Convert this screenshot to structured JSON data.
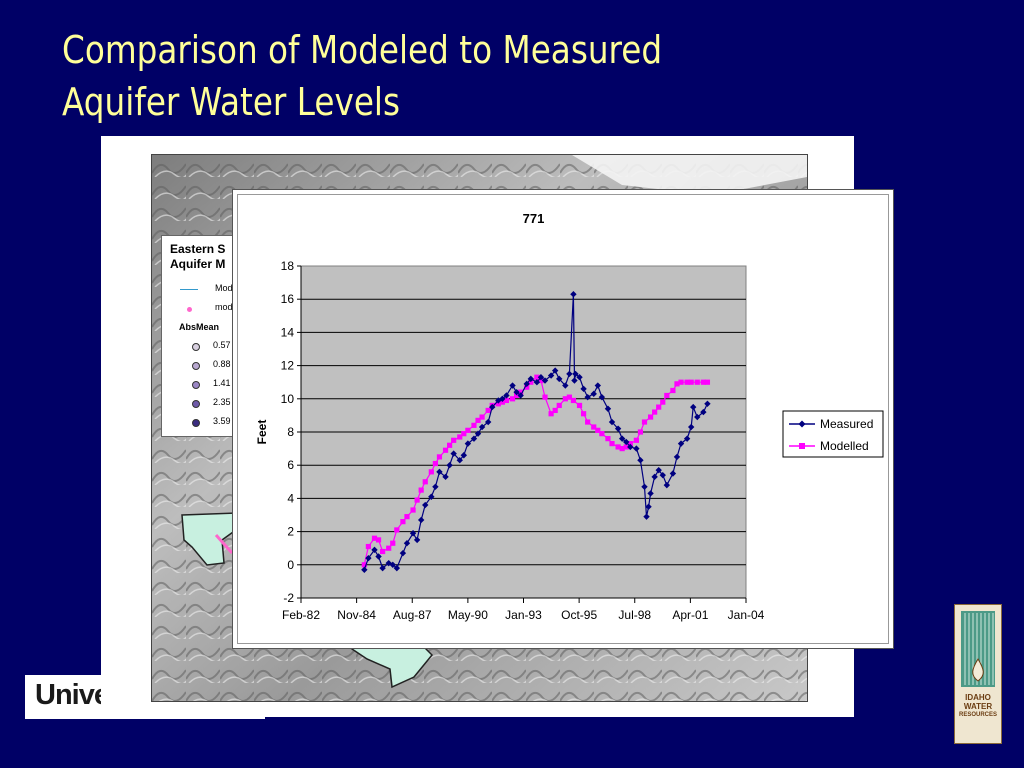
{
  "slide": {
    "title_line1": "Comparison of Modeled to Measured",
    "title_line2": "Aquifer Water Levels",
    "footer_logo_text": "Unive",
    "iwri_logo_text": [
      "IDAHO",
      "WATER",
      "RESOURCES"
    ]
  },
  "map_legend": {
    "title_line1": "Eastern S",
    "title_line2": "Aquifer M",
    "row_line": "Mod",
    "row_dot": "mod",
    "abs_mean_header": "AbsMean",
    "classes": [
      "0.57",
      "0.88",
      "1.41",
      "2.35",
      "3.59"
    ]
  },
  "colors": {
    "background": "#000066",
    "title": "#ffff99",
    "measured": "#000080",
    "modelled": "#ff00ff",
    "plot_area": "#c0c0c0"
  },
  "chart_data": {
    "type": "line",
    "title": "771",
    "xlabel": "",
    "ylabel": "Feet",
    "ylim": [
      -2,
      18
    ],
    "yticks": [
      -2,
      0,
      2,
      4,
      6,
      8,
      10,
      12,
      14,
      16,
      18
    ],
    "xticks": [
      "Feb-82",
      "Nov-84",
      "Aug-87",
      "May-90",
      "Jan-93",
      "Oct-95",
      "Jul-98",
      "Apr-01",
      "Jan-04"
    ],
    "x_units": "decimal year",
    "xlim": [
      1982.08,
      2004.0
    ],
    "grid": "horizontal",
    "legend_position": "right",
    "series": [
      {
        "name": "Measured",
        "marker": "diamond",
        "color": "#000080",
        "x": [
          1985.2,
          1985.4,
          1985.7,
          1985.9,
          1986.1,
          1986.4,
          1986.6,
          1986.8,
          1987.1,
          1987.3,
          1987.6,
          1987.8,
          1988.0,
          1988.2,
          1988.5,
          1988.7,
          1988.9,
          1989.2,
          1989.4,
          1989.6,
          1989.9,
          1990.1,
          1990.3,
          1990.6,
          1990.8,
          1991.0,
          1991.3,
          1991.5,
          1991.8,
          1992.0,
          1992.2,
          1992.5,
          1992.7,
          1992.9,
          1993.2,
          1993.4,
          1993.7,
          1993.9,
          1994.1,
          1994.4,
          1994.6,
          1994.8,
          1995.1,
          1995.3,
          1995.5,
          1995.55,
          1995.6,
          1995.8,
          1996.0,
          1996.2,
          1996.5,
          1996.7,
          1996.9,
          1997.2,
          1997.4,
          1997.7,
          1997.9,
          1998.1,
          1998.3,
          1998.6,
          1998.8,
          1999.0,
          1999.1,
          1999.2,
          1999.3,
          1999.5,
          1999.7,
          1999.9,
          2000.1,
          2000.4,
          2000.6,
          2000.8,
          2001.1,
          2001.3,
          2001.4,
          2001.6,
          2001.9,
          2002.1
        ],
        "y": [
          -0.3,
          0.4,
          0.9,
          0.5,
          -0.2,
          0.1,
          0.0,
          -0.2,
          0.7,
          1.3,
          1.9,
          1.5,
          2.7,
          3.6,
          4.1,
          4.7,
          5.6,
          5.3,
          6.0,
          6.7,
          6.3,
          6.6,
          7.3,
          7.6,
          7.9,
          8.3,
          8.6,
          9.5,
          9.9,
          10.0,
          10.2,
          10.8,
          10.4,
          10.2,
          10.9,
          11.2,
          11.0,
          11.3,
          11.1,
          11.4,
          11.7,
          11.2,
          10.8,
          11.5,
          16.3,
          11.1,
          11.5,
          11.3,
          10.6,
          10.1,
          10.3,
          10.8,
          10.1,
          9.4,
          8.6,
          8.2,
          7.6,
          7.4,
          7.1,
          7.0,
          6.3,
          4.7,
          2.9,
          3.5,
          4.3,
          5.3,
          5.7,
          5.4,
          4.8,
          5.5,
          6.5,
          7.3,
          7.6,
          8.3,
          9.5,
          8.9,
          9.2,
          9.7
        ]
      },
      {
        "name": "Modelled",
        "marker": "square",
        "color": "#ff00ff",
        "x": [
          1985.2,
          1985.4,
          1985.7,
          1985.9,
          1986.1,
          1986.4,
          1986.6,
          1986.8,
          1987.1,
          1987.3,
          1987.6,
          1987.8,
          1988.0,
          1988.2,
          1988.5,
          1988.7,
          1988.9,
          1989.2,
          1989.4,
          1989.6,
          1989.9,
          1990.1,
          1990.3,
          1990.6,
          1990.8,
          1991.0,
          1991.3,
          1991.5,
          1991.8,
          1992.0,
          1992.2,
          1992.5,
          1992.7,
          1992.9,
          1993.2,
          1993.4,
          1993.7,
          1993.9,
          1994.1,
          1994.4,
          1994.6,
          1994.8,
          1995.1,
          1995.3,
          1995.5,
          1995.8,
          1996.0,
          1996.2,
          1996.5,
          1996.7,
          1996.9,
          1997.2,
          1997.4,
          1997.7,
          1997.9,
          1998.1,
          1998.3,
          1998.6,
          1998.8,
          1999.0,
          1999.3,
          1999.5,
          1999.7,
          1999.9,
          2000.1,
          2000.4,
          2000.6,
          2000.8,
          2001.1,
          2001.3,
          2001.6,
          2001.9,
          2002.1
        ],
        "y": [
          0.0,
          1.1,
          1.6,
          1.5,
          0.8,
          1.0,
          1.3,
          2.1,
          2.6,
          2.9,
          3.3,
          3.9,
          4.5,
          5.0,
          5.6,
          6.1,
          6.5,
          6.9,
          7.2,
          7.5,
          7.7,
          7.9,
          8.1,
          8.4,
          8.7,
          8.9,
          9.3,
          9.6,
          9.7,
          9.8,
          9.9,
          10.0,
          10.2,
          10.4,
          10.7,
          11.0,
          11.3,
          11.1,
          10.1,
          9.1,
          9.3,
          9.6,
          10.0,
          10.1,
          9.9,
          9.6,
          9.1,
          8.6,
          8.3,
          8.1,
          7.9,
          7.6,
          7.3,
          7.1,
          7.0,
          7.1,
          7.3,
          7.5,
          8.0,
          8.6,
          8.9,
          9.2,
          9.5,
          9.8,
          10.2,
          10.5,
          10.9,
          11.0,
          11.0,
          11.0,
          11.0,
          11.0,
          11.0
        ]
      }
    ]
  }
}
